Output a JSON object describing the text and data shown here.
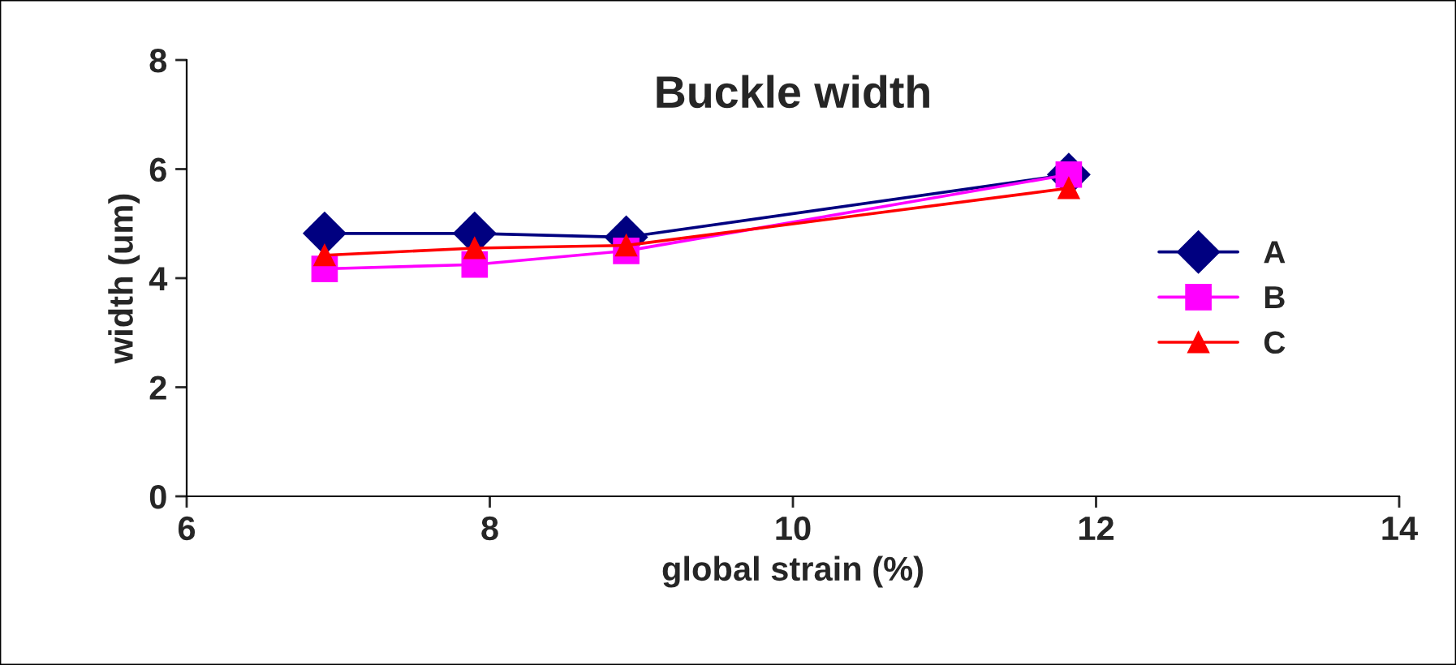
{
  "chart_data": {
    "type": "line",
    "title": "Buckle width",
    "xlabel": "global strain (%)",
    "ylabel": "width (um)",
    "x": [
      6.91,
      7.9,
      8.9,
      11.82
    ],
    "series": [
      {
        "name": "A",
        "color": "#000080",
        "marker": "diamond",
        "values": [
          4.82,
          4.82,
          4.75,
          5.9
        ]
      },
      {
        "name": "B",
        "color": "#ff00ff",
        "marker": "square",
        "values": [
          4.17,
          4.25,
          4.5,
          5.9
        ]
      },
      {
        "name": "C",
        "color": "#ff0000",
        "marker": "triangle",
        "values": [
          4.42,
          4.55,
          4.6,
          5.65
        ]
      }
    ],
    "xlim": [
      6,
      14
    ],
    "xticks": [
      6,
      8,
      10,
      12,
      14
    ],
    "ylim": [
      0,
      8
    ],
    "yticks": [
      0,
      2,
      4,
      6,
      8
    ],
    "grid": false,
    "legend": "right",
    "line_style": "solid"
  }
}
